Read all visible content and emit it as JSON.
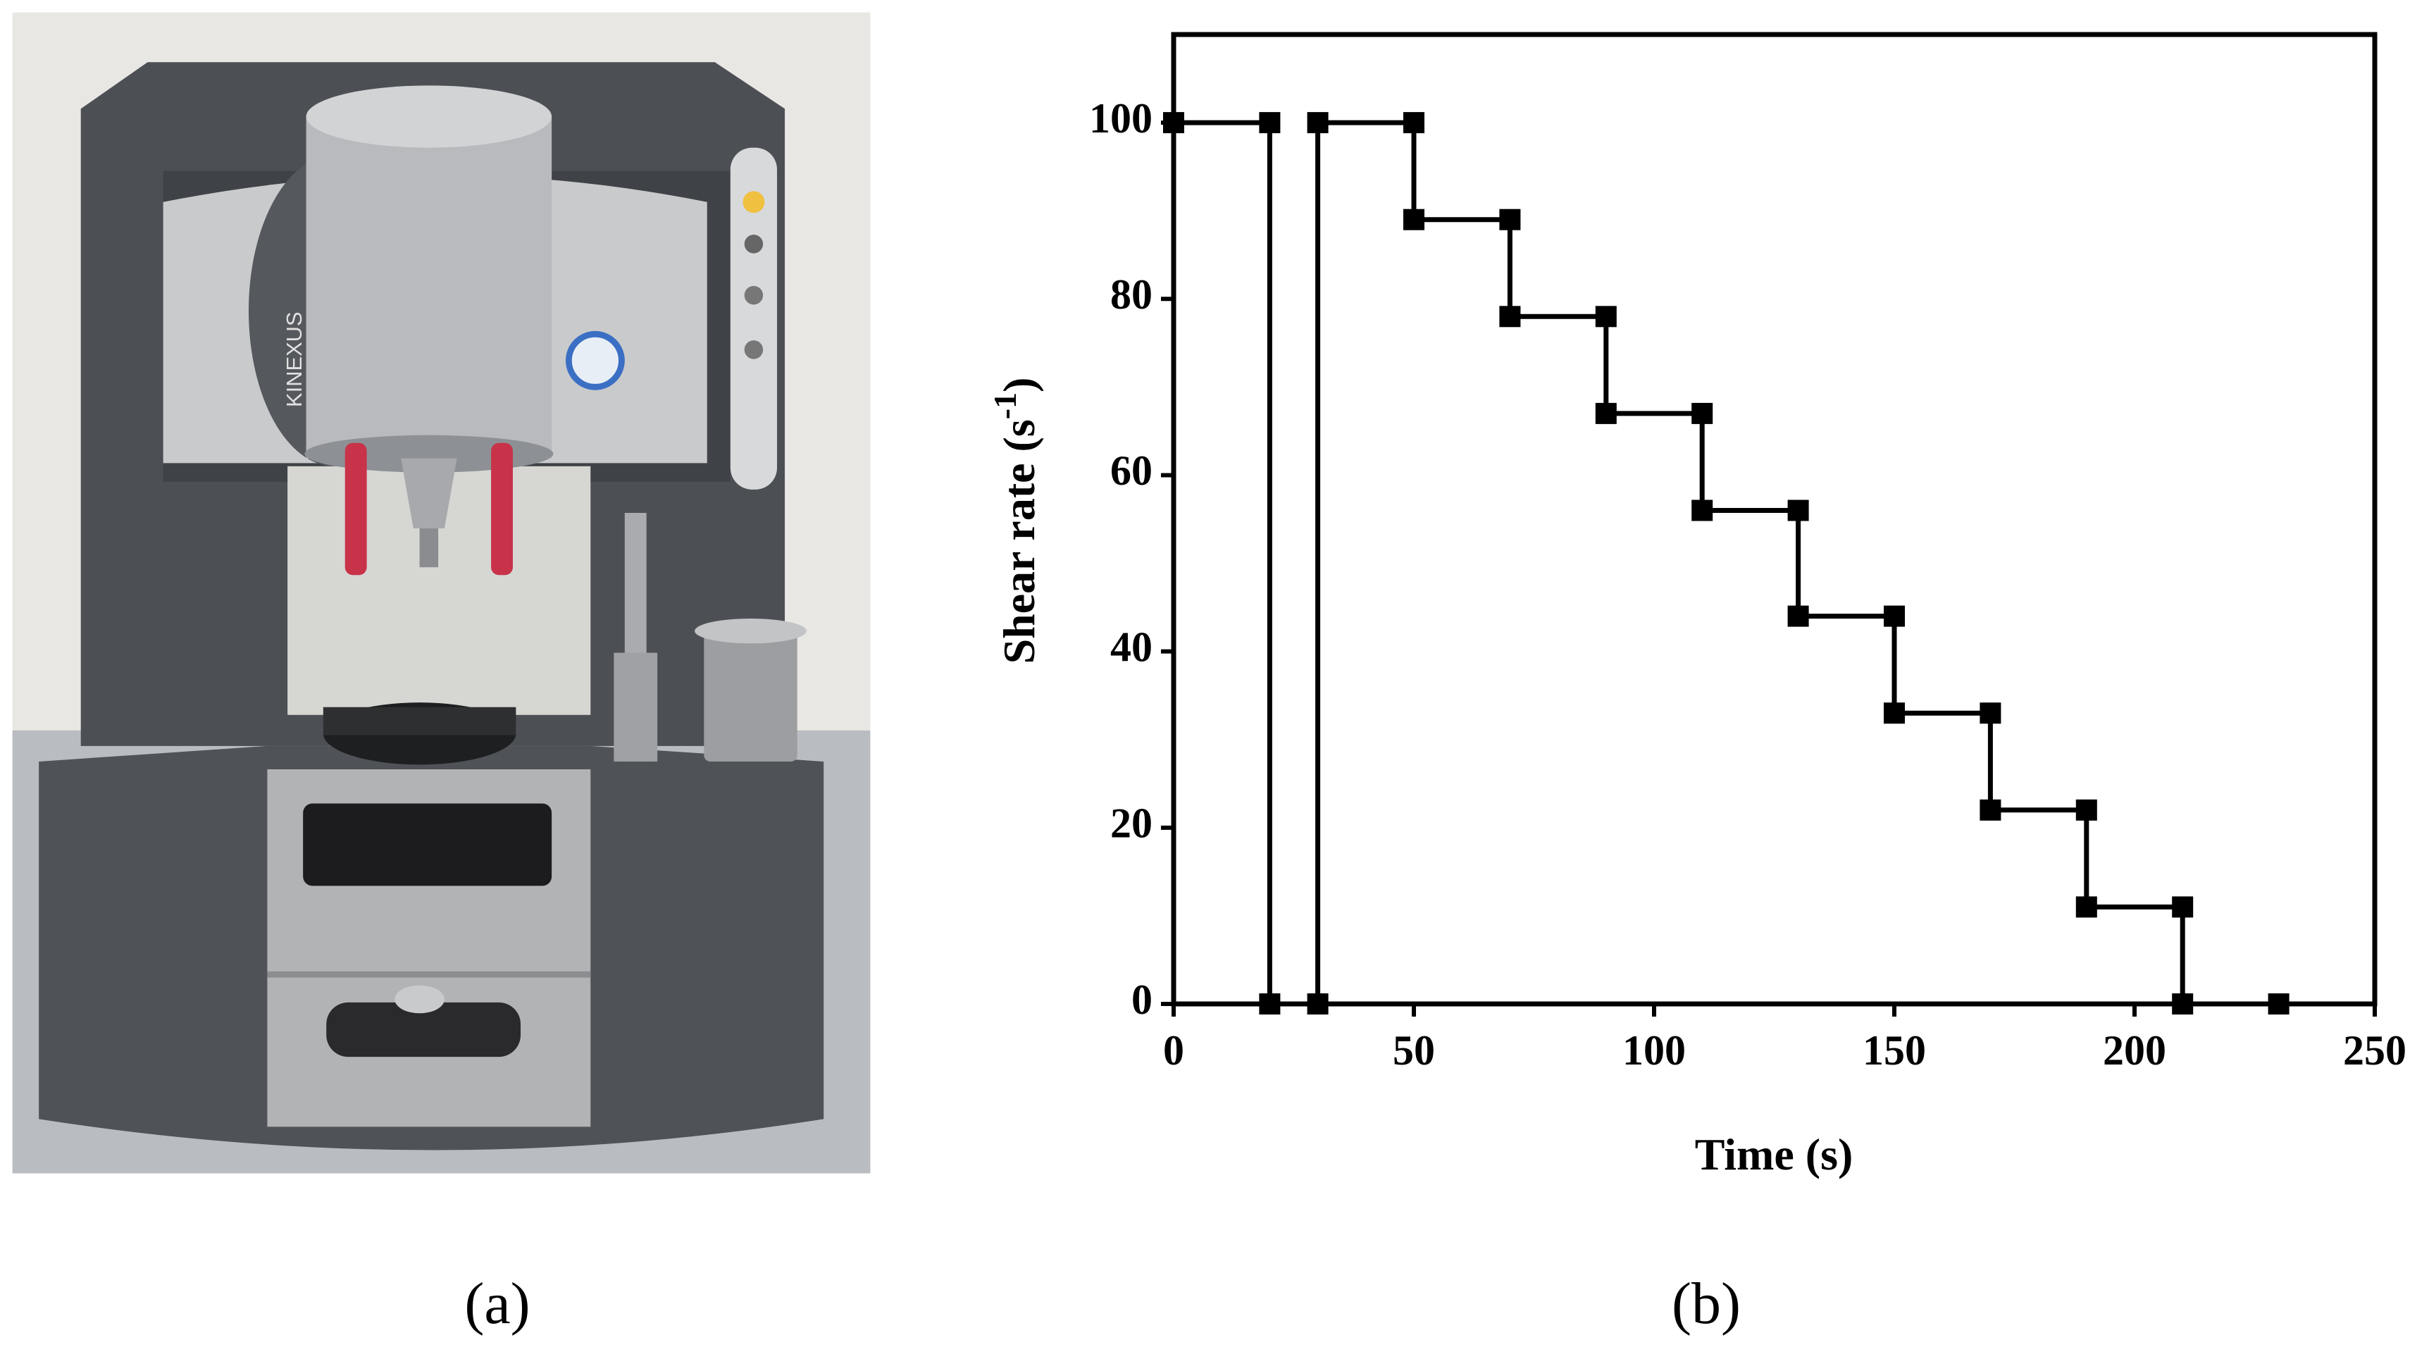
{
  "panels": {
    "a": "(a)",
    "b": "(b)"
  },
  "photo": {
    "brand": "KINEXUS"
  },
  "chart_data": {
    "type": "line",
    "x_label": "Time (s)",
    "y_label": {
      "text": "Shear rate (s",
      "superscript": "-1",
      "suffix": ")"
    },
    "x": [
      0,
      20,
      20,
      30,
      30,
      50,
      50,
      70,
      70,
      90,
      90,
      110,
      110,
      130,
      130,
      150,
      150,
      170,
      170,
      190,
      190,
      210,
      210,
      230
    ],
    "values": [
      100,
      100,
      0,
      0,
      100,
      100,
      89,
      89,
      78,
      78,
      67,
      67,
      56,
      56,
      44,
      44,
      33,
      33,
      22,
      22,
      11,
      11,
      0,
      0
    ],
    "color": "#000000",
    "xlim": [
      0,
      250
    ],
    "xticks": [
      0,
      50,
      100,
      150,
      200,
      250
    ],
    "ylim": [
      0,
      110
    ],
    "yticks": [
      0,
      20,
      40,
      60,
      80,
      100
    ],
    "grid": false
  }
}
